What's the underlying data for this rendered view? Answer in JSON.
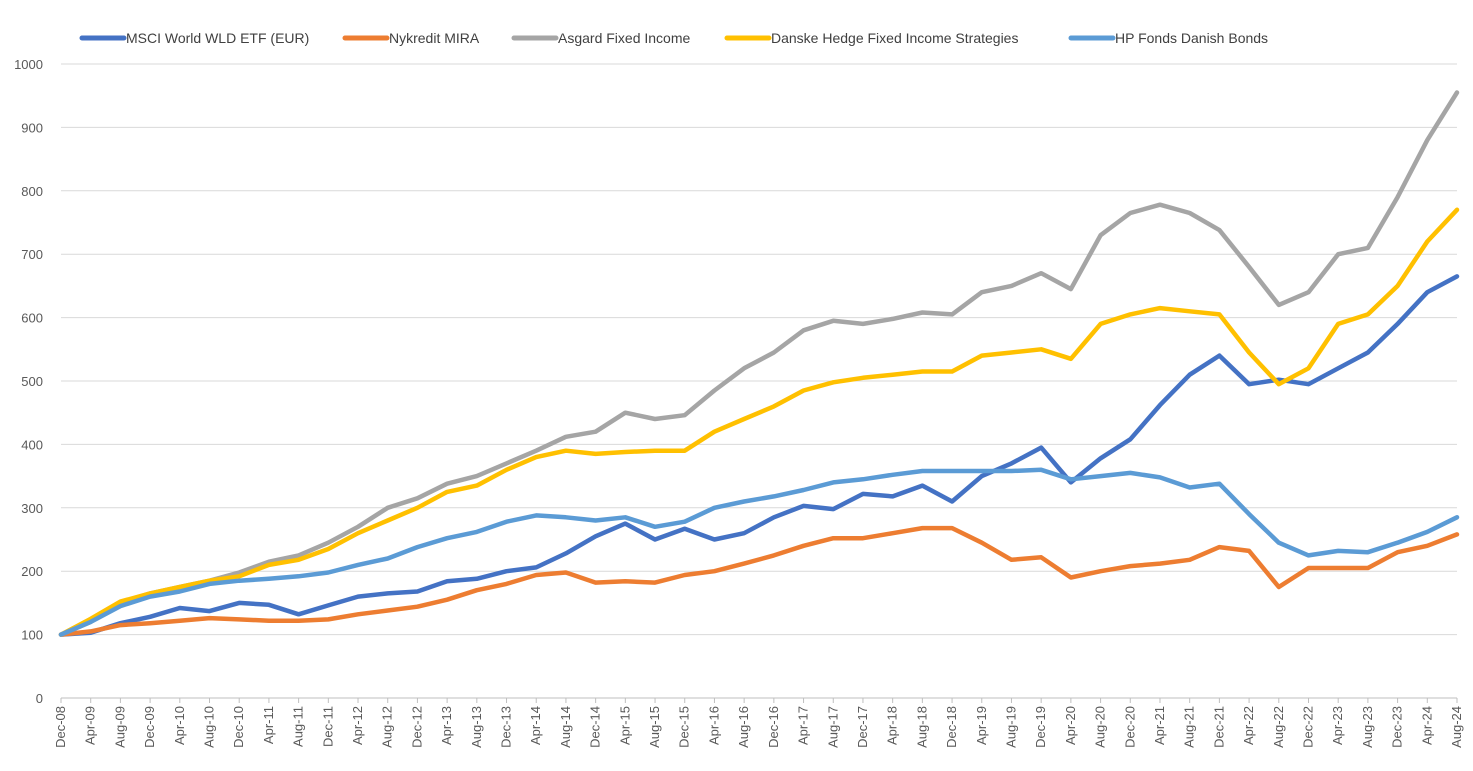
{
  "chart_data": {
    "type": "line",
    "title": "",
    "xlabel": "",
    "ylabel": "",
    "ylim": [
      0,
      1000
    ],
    "yticks": [
      0,
      100,
      200,
      300,
      400,
      500,
      600,
      700,
      800,
      900,
      1000
    ],
    "grid": "horizontal",
    "legend_position": "top",
    "x_tick_labels": [
      "Dec-08",
      "Apr-09",
      "Aug-09",
      "Dec-09",
      "Apr-10",
      "Aug-10",
      "Dec-10",
      "Apr-11",
      "Aug-11",
      "Dec-11",
      "Apr-12",
      "Aug-12",
      "Dec-12",
      "Apr-13",
      "Aug-13",
      "Dec-13",
      "Apr-14",
      "Aug-14",
      "Dec-14",
      "Apr-15",
      "Aug-15",
      "Dec-15",
      "Apr-16",
      "Aug-16",
      "Dec-16",
      "Apr-17",
      "Aug-17",
      "Dec-17",
      "Apr-18",
      "Aug-18",
      "Dec-18",
      "Apr-19",
      "Aug-19",
      "Dec-19",
      "Apr-20",
      "Aug-20",
      "Dec-20",
      "Apr-21",
      "Aug-21",
      "Dec-21",
      "Apr-22",
      "Aug-22",
      "Dec-22",
      "Apr-23",
      "Aug-23",
      "Dec-23",
      "Apr-24",
      "Aug-24"
    ],
    "series": [
      {
        "name": "MSCI World WLD ETF (EUR)",
        "color": "#4472C4",
        "values": [
          100,
          103,
          118,
          128,
          142,
          137,
          150,
          147,
          132,
          146,
          160,
          165,
          168,
          184,
          188,
          200,
          206,
          228,
          255,
          275,
          250,
          267,
          250,
          260,
          285,
          303,
          298,
          322,
          318,
          335,
          310,
          350,
          370,
          395,
          340,
          378,
          408,
          462,
          510,
          540,
          495,
          502,
          495,
          520,
          545,
          590,
          640,
          665
        ]
      },
      {
        "name": "Nykredit MIRA",
        "color": "#ED7D31",
        "values": [
          100,
          105,
          115,
          118,
          122,
          126,
          124,
          122,
          122,
          124,
          132,
          138,
          144,
          155,
          170,
          180,
          194,
          198,
          182,
          184,
          182,
          194,
          200,
          212,
          225,
          240,
          252,
          252,
          260,
          268,
          268,
          245,
          218,
          222,
          190,
          200,
          208,
          212,
          218,
          238,
          232,
          175,
          205,
          205,
          205,
          230,
          240,
          258
        ]
      },
      {
        "name": "Asgard Fixed Income",
        "color": "#A5A5A5",
        "values": [
          100,
          120,
          150,
          165,
          175,
          185,
          198,
          215,
          225,
          245,
          270,
          300,
          315,
          338,
          350,
          370,
          390,
          412,
          420,
          450,
          440,
          446,
          485,
          520,
          545,
          580,
          595,
          590,
          598,
          608,
          605,
          640,
          650,
          670,
          645,
          730,
          765,
          778,
          765,
          738,
          680,
          620,
          640,
          700,
          710,
          790,
          880,
          955
        ]
      },
      {
        "name": "Danske Hedge Fixed Income Strategies",
        "color": "#FFC000",
        "values": [
          100,
          125,
          152,
          165,
          175,
          185,
          192,
          210,
          218,
          235,
          260,
          280,
          300,
          325,
          335,
          360,
          380,
          390,
          385,
          388,
          390,
          390,
          420,
          440,
          460,
          485,
          498,
          505,
          510,
          515,
          515,
          540,
          545,
          550,
          535,
          590,
          605,
          615,
          610,
          605,
          545,
          495,
          520,
          590,
          605,
          650,
          720,
          770
        ]
      },
      {
        "name": "HP Fonds Danish Bonds",
        "color": "#5B9BD5",
        "values": [
          100,
          120,
          145,
          160,
          168,
          180,
          185,
          188,
          192,
          198,
          210,
          220,
          238,
          252,
          262,
          278,
          288,
          285,
          280,
          285,
          270,
          278,
          300,
          310,
          318,
          328,
          340,
          345,
          352,
          358,
          358,
          358,
          358,
          360,
          345,
          350,
          355,
          348,
          332,
          338,
          290,
          245,
          225,
          232,
          230,
          245,
          262,
          285
        ]
      }
    ]
  }
}
